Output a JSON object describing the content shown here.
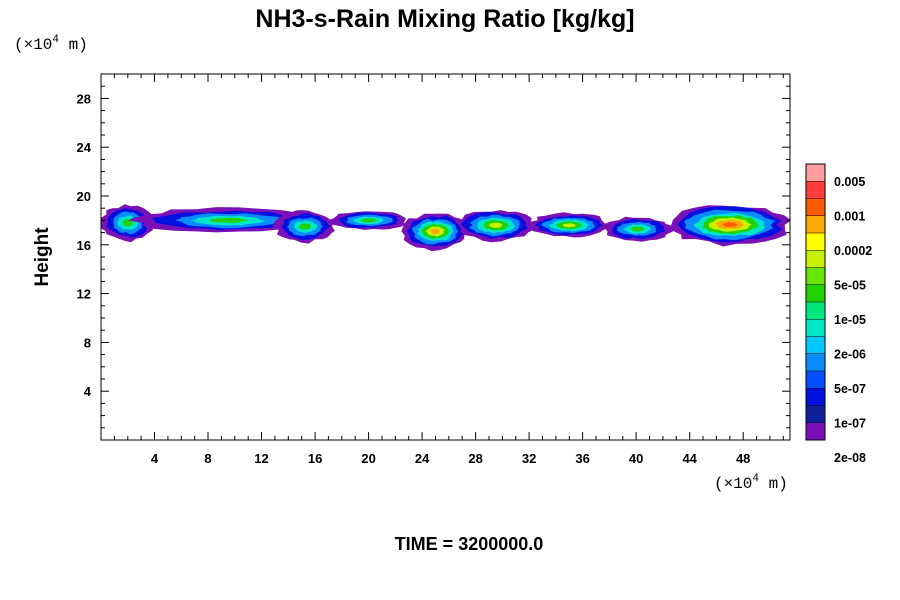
{
  "chart_data": {
    "type": "heatmap",
    "title": "NH3-s-Rain Mixing Ratio [kg/kg]",
    "ylabel": "Height",
    "x_unit": {
      "prefix": "(×10",
      "exponent": "4",
      "suffix": " m)"
    },
    "y_unit": {
      "prefix": "(×10",
      "exponent": "4",
      "suffix": " m)"
    },
    "xlim": [
      0,
      51.5
    ],
    "ylim": [
      0,
      30
    ],
    "x_ticks": [
      4,
      8,
      12,
      16,
      20,
      24,
      28,
      32,
      36,
      40,
      44,
      48
    ],
    "x_tick_labels": [
      "4",
      "8",
      "12",
      "16",
      "20",
      "24",
      "28",
      "32",
      "36",
      "40",
      "44",
      "48"
    ],
    "y_ticks": [
      4,
      8,
      12,
      16,
      20,
      24,
      28
    ],
    "y_tick_labels": [
      "4",
      "8",
      "12",
      "16",
      "20",
      "24",
      "28"
    ],
    "colorbar": {
      "labels": [
        "0.005",
        "0.001",
        "0.0002",
        "5e-05",
        "1e-05",
        "2e-06",
        "5e-07",
        "1e-07",
        "2e-08"
      ],
      "colors_top_to_bottom": [
        "#ff9c9c",
        "#ff3d3d",
        "#ff5a00",
        "#ffa500",
        "#ffff00",
        "#c8f000",
        "#66e600",
        "#22d200",
        "#00e87a",
        "#00e6c8",
        "#00c8ff",
        "#0a8cff",
        "#0050ff",
        "#0010e0",
        "#10209a",
        "#7a10b8"
      ]
    },
    "field_layer_colors": [
      "#7a10b8",
      "#0010e0",
      "#0a8cff",
      "#00e6c8",
      "#22d200",
      "#c8f000",
      "#ffa500",
      "#ff5a00"
    ],
    "field_description_values": {
      "layer_top_height": 19.2,
      "layer_bottom_height": 15.6,
      "max_category_near": [
        48.5,
        17.5
      ]
    },
    "clouds": [
      {
        "x": [
          0.0,
          4.0
        ],
        "y": [
          16.3,
          19.3
        ],
        "max_level": 4
      },
      {
        "x": [
          2.5,
          16.5
        ],
        "y": [
          17.0,
          19.0
        ],
        "max_level": 4
      },
      {
        "x": [
          13.0,
          17.5
        ],
        "y": [
          16.2,
          18.8
        ],
        "max_level": 4
      },
      {
        "x": [
          17.0,
          23.0
        ],
        "y": [
          17.2,
          18.8
        ],
        "max_level": 4
      },
      {
        "x": [
          22.5,
          27.5
        ],
        "y": [
          15.6,
          18.6
        ],
        "max_level": 6
      },
      {
        "x": [
          26.5,
          32.5
        ],
        "y": [
          16.3,
          18.9
        ],
        "max_level": 5
      },
      {
        "x": [
          32.0,
          38.0
        ],
        "y": [
          16.6,
          18.6
        ],
        "max_level": 5
      },
      {
        "x": [
          37.5,
          42.7
        ],
        "y": [
          16.3,
          18.3
        ],
        "max_level": 4
      },
      {
        "x": [
          42.5,
          51.5
        ],
        "y": [
          16.0,
          19.3
        ],
        "max_level": 7
      }
    ],
    "time_label": "TIME = 3200000.0"
  }
}
